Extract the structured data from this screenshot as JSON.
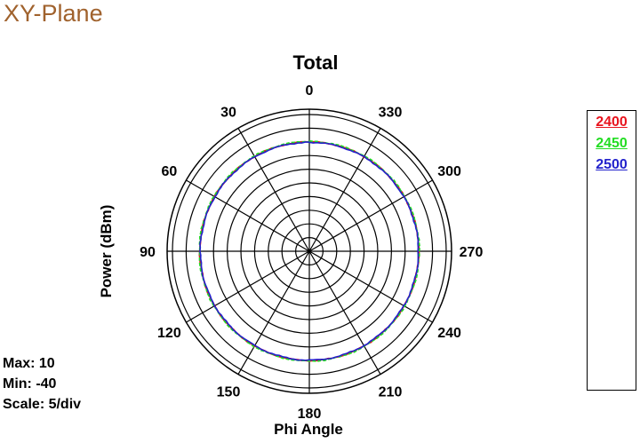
{
  "page": {
    "title": "XY-Plane"
  },
  "stats": {
    "max": "Max: 10",
    "min": "Min: -40",
    "scale": "Scale: 5/div"
  },
  "chart_data": {
    "type": "polar",
    "title": "Total",
    "xlabel": "Phi Angle",
    "ylabel": "Power  (dBm)",
    "radial_range": [
      -40,
      10
    ],
    "radial_step": 5,
    "angle_direction": "counter-clockwise from top",
    "angle_ticks": [
      0,
      30,
      60,
      90,
      120,
      150,
      180,
      210,
      240,
      270,
      300,
      330
    ],
    "angle_tick_labels": [
      "0",
      "330",
      "300",
      "270",
      "240",
      "210",
      "180",
      "150",
      "120",
      "90",
      "60",
      "30"
    ],
    "grid": true,
    "legend_position": "right",
    "series": [
      {
        "name": "2400",
        "color": "#e8141e",
        "values_dbm_approx": [
          0,
          0,
          0,
          0,
          0,
          0,
          0,
          0,
          0,
          0,
          0,
          0
        ]
      },
      {
        "name": "2450",
        "color": "#22dd22",
        "values_dbm_approx": [
          0,
          0,
          0,
          0,
          0,
          0,
          0,
          0,
          0,
          0,
          0,
          0
        ]
      },
      {
        "name": "2500",
        "color": "#2222cc",
        "values_dbm_approx": [
          0,
          0,
          0,
          0,
          0,
          0,
          0,
          0,
          0,
          0,
          0,
          0
        ]
      }
    ]
  }
}
